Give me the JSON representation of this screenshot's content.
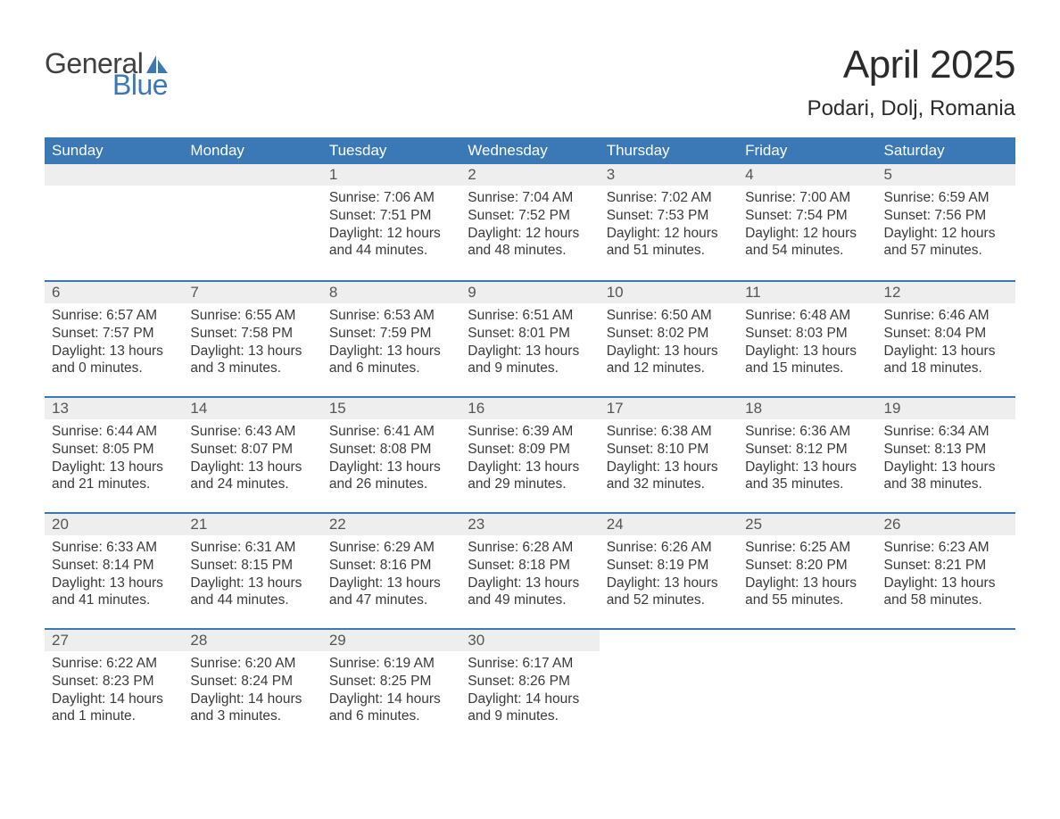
{
  "brand": {
    "word1": "General",
    "word2": "Blue",
    "brand_color": "#3a78b6",
    "text_color": "#404040"
  },
  "title": "April 2025",
  "location": "Podari, Dolj, Romania",
  "colors": {
    "header_bg": "#3a78b6",
    "header_text": "#ffffff",
    "daynum_bg": "#eeeeee",
    "week_divider": "#3a78b6",
    "body_text": "#3a3a3a",
    "bg": "#ffffff"
  },
  "weekdays": [
    "Sunday",
    "Monday",
    "Tuesday",
    "Wednesday",
    "Thursday",
    "Friday",
    "Saturday"
  ],
  "weeks": [
    [
      {
        "n": "",
        "empty": true
      },
      {
        "n": "",
        "empty": true
      },
      {
        "n": "1",
        "sunrise": "Sunrise: 7:06 AM",
        "sunset": "Sunset: 7:51 PM",
        "daylight": "Daylight: 12 hours and 44 minutes."
      },
      {
        "n": "2",
        "sunrise": "Sunrise: 7:04 AM",
        "sunset": "Sunset: 7:52 PM",
        "daylight": "Daylight: 12 hours and 48 minutes."
      },
      {
        "n": "3",
        "sunrise": "Sunrise: 7:02 AM",
        "sunset": "Sunset: 7:53 PM",
        "daylight": "Daylight: 12 hours and 51 minutes."
      },
      {
        "n": "4",
        "sunrise": "Sunrise: 7:00 AM",
        "sunset": "Sunset: 7:54 PM",
        "daylight": "Daylight: 12 hours and 54 minutes."
      },
      {
        "n": "5",
        "sunrise": "Sunrise: 6:59 AM",
        "sunset": "Sunset: 7:56 PM",
        "daylight": "Daylight: 12 hours and 57 minutes."
      }
    ],
    [
      {
        "n": "6",
        "sunrise": "Sunrise: 6:57 AM",
        "sunset": "Sunset: 7:57 PM",
        "daylight": "Daylight: 13 hours and 0 minutes."
      },
      {
        "n": "7",
        "sunrise": "Sunrise: 6:55 AM",
        "sunset": "Sunset: 7:58 PM",
        "daylight": "Daylight: 13 hours and 3 minutes."
      },
      {
        "n": "8",
        "sunrise": "Sunrise: 6:53 AM",
        "sunset": "Sunset: 7:59 PM",
        "daylight": "Daylight: 13 hours and 6 minutes."
      },
      {
        "n": "9",
        "sunrise": "Sunrise: 6:51 AM",
        "sunset": "Sunset: 8:01 PM",
        "daylight": "Daylight: 13 hours and 9 minutes."
      },
      {
        "n": "10",
        "sunrise": "Sunrise: 6:50 AM",
        "sunset": "Sunset: 8:02 PM",
        "daylight": "Daylight: 13 hours and 12 minutes."
      },
      {
        "n": "11",
        "sunrise": "Sunrise: 6:48 AM",
        "sunset": "Sunset: 8:03 PM",
        "daylight": "Daylight: 13 hours and 15 minutes."
      },
      {
        "n": "12",
        "sunrise": "Sunrise: 6:46 AM",
        "sunset": "Sunset: 8:04 PM",
        "daylight": "Daylight: 13 hours and 18 minutes."
      }
    ],
    [
      {
        "n": "13",
        "sunrise": "Sunrise: 6:44 AM",
        "sunset": "Sunset: 8:05 PM",
        "daylight": "Daylight: 13 hours and 21 minutes."
      },
      {
        "n": "14",
        "sunrise": "Sunrise: 6:43 AM",
        "sunset": "Sunset: 8:07 PM",
        "daylight": "Daylight: 13 hours and 24 minutes."
      },
      {
        "n": "15",
        "sunrise": "Sunrise: 6:41 AM",
        "sunset": "Sunset: 8:08 PM",
        "daylight": "Daylight: 13 hours and 26 minutes."
      },
      {
        "n": "16",
        "sunrise": "Sunrise: 6:39 AM",
        "sunset": "Sunset: 8:09 PM",
        "daylight": "Daylight: 13 hours and 29 minutes."
      },
      {
        "n": "17",
        "sunrise": "Sunrise: 6:38 AM",
        "sunset": "Sunset: 8:10 PM",
        "daylight": "Daylight: 13 hours and 32 minutes."
      },
      {
        "n": "18",
        "sunrise": "Sunrise: 6:36 AM",
        "sunset": "Sunset: 8:12 PM",
        "daylight": "Daylight: 13 hours and 35 minutes."
      },
      {
        "n": "19",
        "sunrise": "Sunrise: 6:34 AM",
        "sunset": "Sunset: 8:13 PM",
        "daylight": "Daylight: 13 hours and 38 minutes."
      }
    ],
    [
      {
        "n": "20",
        "sunrise": "Sunrise: 6:33 AM",
        "sunset": "Sunset: 8:14 PM",
        "daylight": "Daylight: 13 hours and 41 minutes."
      },
      {
        "n": "21",
        "sunrise": "Sunrise: 6:31 AM",
        "sunset": "Sunset: 8:15 PM",
        "daylight": "Daylight: 13 hours and 44 minutes."
      },
      {
        "n": "22",
        "sunrise": "Sunrise: 6:29 AM",
        "sunset": "Sunset: 8:16 PM",
        "daylight": "Daylight: 13 hours and 47 minutes."
      },
      {
        "n": "23",
        "sunrise": "Sunrise: 6:28 AM",
        "sunset": "Sunset: 8:18 PM",
        "daylight": "Daylight: 13 hours and 49 minutes."
      },
      {
        "n": "24",
        "sunrise": "Sunrise: 6:26 AM",
        "sunset": "Sunset: 8:19 PM",
        "daylight": "Daylight: 13 hours and 52 minutes."
      },
      {
        "n": "25",
        "sunrise": "Sunrise: 6:25 AM",
        "sunset": "Sunset: 8:20 PM",
        "daylight": "Daylight: 13 hours and 55 minutes."
      },
      {
        "n": "26",
        "sunrise": "Sunrise: 6:23 AM",
        "sunset": "Sunset: 8:21 PM",
        "daylight": "Daylight: 13 hours and 58 minutes."
      }
    ],
    [
      {
        "n": "27",
        "sunrise": "Sunrise: 6:22 AM",
        "sunset": "Sunset: 8:23 PM",
        "daylight": "Daylight: 14 hours and 1 minute."
      },
      {
        "n": "28",
        "sunrise": "Sunrise: 6:20 AM",
        "sunset": "Sunset: 8:24 PM",
        "daylight": "Daylight: 14 hours and 3 minutes."
      },
      {
        "n": "29",
        "sunrise": "Sunrise: 6:19 AM",
        "sunset": "Sunset: 8:25 PM",
        "daylight": "Daylight: 14 hours and 6 minutes."
      },
      {
        "n": "30",
        "sunrise": "Sunrise: 6:17 AM",
        "sunset": "Sunset: 8:26 PM",
        "daylight": "Daylight: 14 hours and 9 minutes."
      },
      {
        "n": "",
        "empty": true,
        "nobg": true
      },
      {
        "n": "",
        "empty": true,
        "nobg": true
      },
      {
        "n": "",
        "empty": true,
        "nobg": true
      }
    ]
  ]
}
